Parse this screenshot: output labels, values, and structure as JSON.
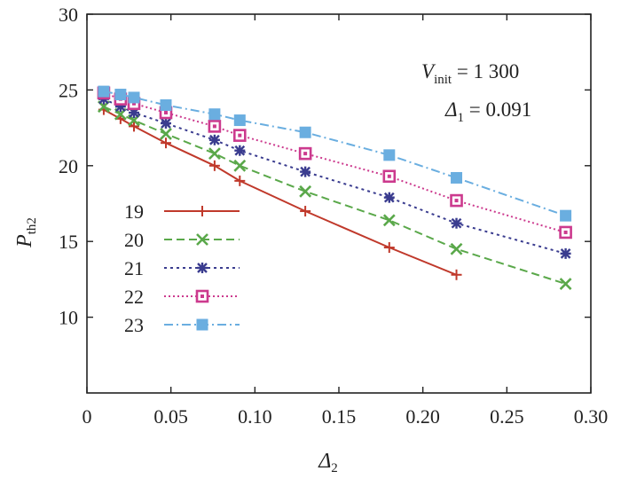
{
  "chart_data": {
    "type": "line",
    "title": "",
    "xlabel": {
      "symbol": "Δ",
      "sub": "2"
    },
    "ylabel": {
      "symbol": "P",
      "sub": "th2"
    },
    "xlim": [
      0,
      0.3
    ],
    "ylim": [
      5,
      30
    ],
    "xticks": [
      0,
      0.05,
      0.1,
      0.15,
      0.2,
      0.25,
      0.3
    ],
    "xtick_labels": [
      "0",
      "0.05",
      "0.10",
      "0.15",
      "0.20",
      "0.25",
      "0.30"
    ],
    "yticks": [
      10,
      15,
      20,
      25,
      30
    ],
    "ytick_labels": [
      "10",
      "15",
      "20",
      "25",
      "30"
    ],
    "grid": false,
    "legend_position": "lower-left",
    "annotations": [
      {
        "symbol": "V",
        "sub": "init",
        "text": " = 1 300"
      },
      {
        "symbol": "Δ",
        "sub": "1",
        "text": " = 0.091"
      }
    ],
    "series": [
      {
        "name": "19",
        "color": "#c0392b",
        "marker": "plus",
        "dash": "solid",
        "x": [
          0.01,
          0.02,
          0.028,
          0.047,
          0.076,
          0.091,
          0.13,
          0.18,
          0.22
        ],
        "y": [
          23.7,
          23.1,
          22.6,
          21.5,
          20.0,
          19.0,
          17.0,
          14.6,
          12.8
        ]
      },
      {
        "name": "20",
        "color": "#5aa84a",
        "marker": "x",
        "dash": "dashed",
        "x": [
          0.01,
          0.02,
          0.028,
          0.047,
          0.076,
          0.091,
          0.13,
          0.18,
          0.22,
          0.285
        ],
        "y": [
          23.9,
          23.4,
          23.0,
          22.1,
          20.8,
          20.0,
          18.3,
          16.4,
          14.5,
          12.2
        ]
      },
      {
        "name": "21",
        "color": "#3a3c8f",
        "marker": "star",
        "dash": "dotted",
        "x": [
          0.01,
          0.02,
          0.028,
          0.047,
          0.076,
          0.091,
          0.13,
          0.18,
          0.22,
          0.285
        ],
        "y": [
          24.4,
          23.9,
          23.5,
          22.8,
          21.7,
          21.0,
          19.6,
          17.9,
          16.2,
          14.2
        ]
      },
      {
        "name": "22",
        "color": "#cc3a8e",
        "marker": "square-open",
        "dash": "densedot",
        "x": [
          0.01,
          0.02,
          0.028,
          0.047,
          0.076,
          0.091,
          0.13,
          0.18,
          0.22,
          0.285
        ],
        "y": [
          24.8,
          24.4,
          24.1,
          23.5,
          22.6,
          22.0,
          20.8,
          19.3,
          17.7,
          15.6
        ]
      },
      {
        "name": "23",
        "color": "#6aaee0",
        "marker": "square-filled",
        "dash": "dashdot",
        "x": [
          0.01,
          0.02,
          0.028,
          0.047,
          0.076,
          0.091,
          0.13,
          0.18,
          0.22,
          0.285
        ],
        "y": [
          24.9,
          24.7,
          24.5,
          24.0,
          23.4,
          23.0,
          22.2,
          20.7,
          19.2,
          16.7
        ]
      }
    ]
  }
}
